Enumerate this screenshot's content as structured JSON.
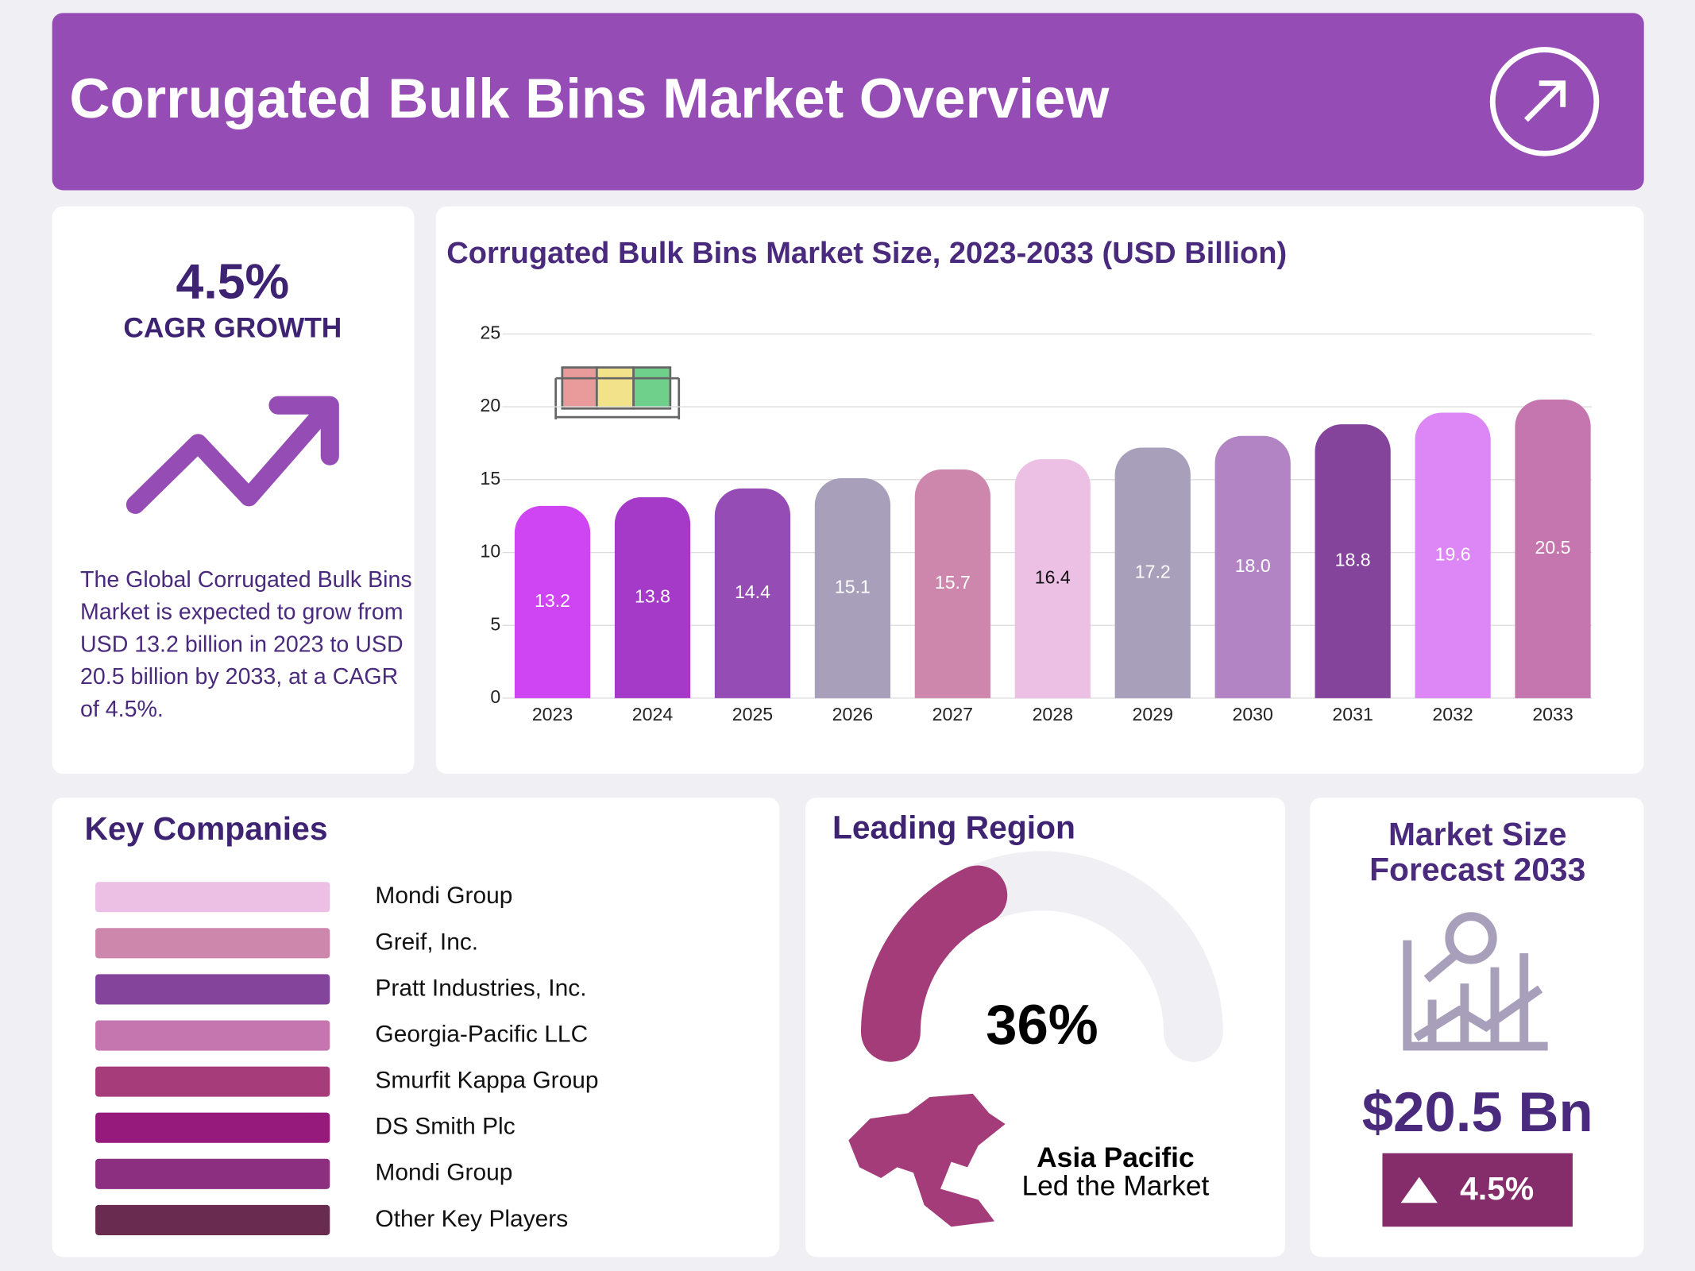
{
  "header": {
    "title": "Corrugated Bulk Bins Market Overview"
  },
  "cagr": {
    "value": "4.5%",
    "label": "CAGR GROWTH",
    "description": "The Global Corrugated Bulk Bins Market is expected to grow from USD 13.2 billion in 2023 to USD 20.5 billion by 2033, at a CAGR of 4.5%."
  },
  "chart_data": {
    "type": "bar",
    "title": "Corrugated Bulk Bins Market Size, 2023-2033 (USD Billion)",
    "categories": [
      "2023",
      "2024",
      "2025",
      "2026",
      "2027",
      "2028",
      "2029",
      "2030",
      "2031",
      "2032",
      "2033"
    ],
    "values": [
      13.2,
      13.8,
      14.4,
      15.1,
      15.7,
      16.4,
      17.2,
      18.0,
      18.8,
      19.6,
      20.5
    ],
    "value_labels": [
      "13.2",
      "13.8",
      "14.4",
      "15.1",
      "15.7",
      "16.4",
      "17.2",
      "18.0",
      "18.8",
      "19.6",
      "20.5"
    ],
    "colors": [
      "#cf44f3",
      "#a63ac8",
      "#954db5",
      "#a89fba",
      "#cd87ad",
      "#ecbfe5",
      "#a89fba",
      "#b384c4",
      "#85449b",
      "#dd86f6",
      "#c576ae"
    ],
    "ylim": [
      0,
      25
    ],
    "yticks": [
      0,
      5,
      10,
      15,
      20,
      25
    ],
    "grid": true
  },
  "key_companies": {
    "title": "Key Companies",
    "items": [
      {
        "name": "Mondi Group",
        "color": "#ecbfe5"
      },
      {
        "name": "Greif, Inc.",
        "color": "#cd87ad"
      },
      {
        "name": "Pratt Industries, Inc.",
        "color": "#85449b"
      },
      {
        "name": "Georgia-Pacific LLC",
        "color": "#c576ae"
      },
      {
        "name": "Smurfit Kappa Group",
        "color": "#a63d7a"
      },
      {
        "name": "DS Smith Plc",
        "color": "#951a7c"
      },
      {
        "name": "Mondi Group",
        "color": "#8c2f80"
      },
      {
        "name": "Other Key Players",
        "color": "#692c50"
      }
    ]
  },
  "leading_region": {
    "title": "Leading Region",
    "share": 36,
    "share_label": "36%",
    "region": "Asia Pacific",
    "note": "Led the Market"
  },
  "forecast": {
    "title_lines": [
      "Market Size",
      "Forecast 2033"
    ],
    "value": "$20.5 Bn",
    "growth": "4.5%"
  }
}
